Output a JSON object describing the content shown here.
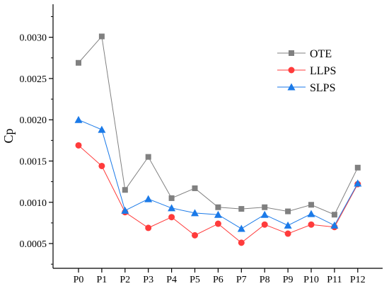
{
  "chart_data": {
    "type": "line",
    "xlabel": "",
    "ylabel": "Cp",
    "categories": [
      "P0",
      "P1",
      "P2",
      "P3",
      "P4",
      "P5",
      "P6",
      "P7",
      "P8",
      "P9",
      "P10",
      "P11",
      "P12"
    ],
    "ylim": [
      0.0002,
      0.0034
    ],
    "yticks": [
      0.0005,
      0.001,
      0.0015,
      0.002,
      0.0025,
      0.003
    ],
    "ytick_labels": [
      "0.0005",
      "0.0010",
      "0.0015",
      "0.0020",
      "0.0025",
      "0.0030"
    ],
    "grid": false,
    "legend_position": "top-right",
    "series": [
      {
        "name": "OTE",
        "marker": "square",
        "color": "#808080",
        "values": [
          0.00269,
          0.00301,
          0.00115,
          0.00155,
          0.00105,
          0.00117,
          0.00094,
          0.00092,
          0.00094,
          0.00089,
          0.00097,
          0.00085,
          0.00142
        ]
      },
      {
        "name": "LLPS",
        "marker": "circle",
        "color": "#ff3b3b",
        "values": [
          0.00169,
          0.00144,
          0.00088,
          0.00069,
          0.00082,
          0.0006,
          0.00074,
          0.00051,
          0.00073,
          0.00062,
          0.00073,
          0.0007,
          0.00122
        ]
      },
      {
        "name": "SLPS",
        "marker": "triangle",
        "color": "#1b7ae8",
        "values": [
          0.002,
          0.00188,
          0.0009,
          0.00104,
          0.00093,
          0.00087,
          0.00085,
          0.00068,
          0.00085,
          0.00072,
          0.00086,
          0.00072,
          0.00123
        ]
      }
    ]
  }
}
